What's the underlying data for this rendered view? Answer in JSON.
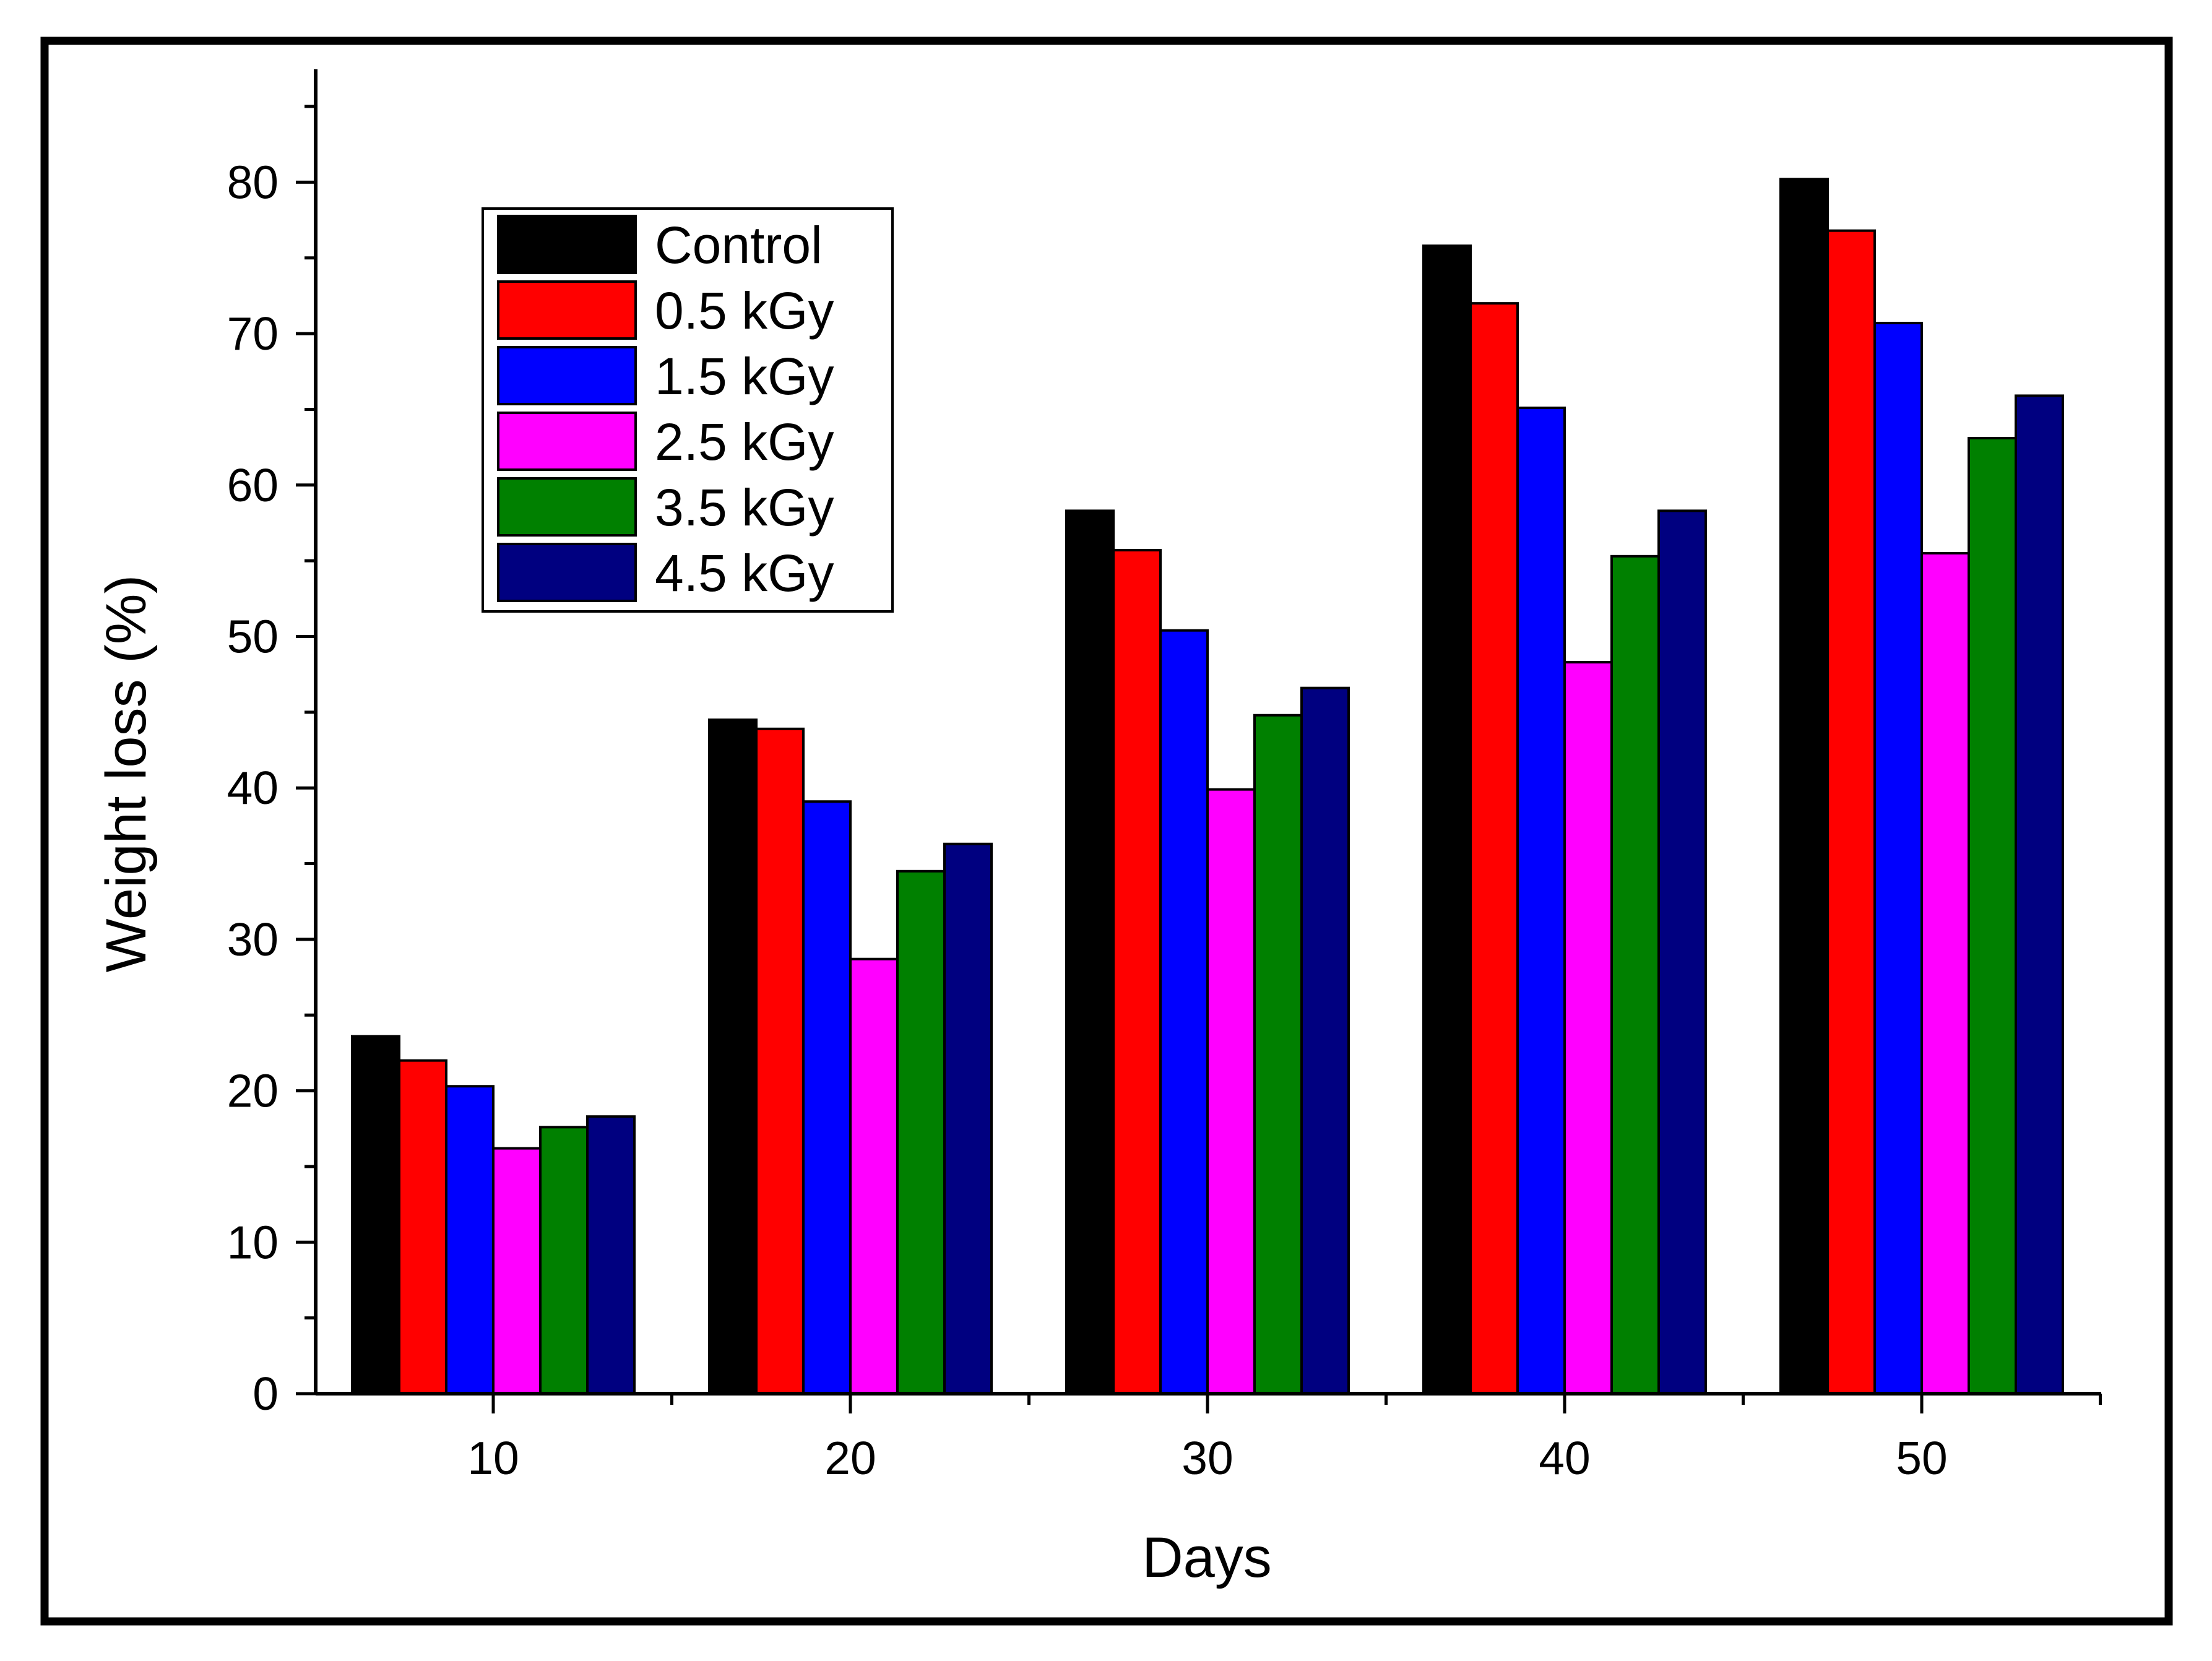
{
  "chart_data": {
    "type": "bar",
    "title": "",
    "xlabel": "Days",
    "ylabel": "Weight loss (%)",
    "categories": [
      "10",
      "20",
      "30",
      "40",
      "50"
    ],
    "ylim": [
      0,
      85
    ],
    "yticks": [
      "0",
      "10",
      "20",
      "30",
      "40",
      "50",
      "60",
      "70",
      "80"
    ],
    "grid": false,
    "legend_position": "top-left",
    "series": [
      {
        "name": "Control",
        "color": "#000000",
        "values": [
          23.6,
          44.5,
          58.3,
          75.8,
          80.2
        ]
      },
      {
        "name": "0.5 kGy",
        "color": "#ff0000",
        "values": [
          22.0,
          43.9,
          55.7,
          72.0,
          76.8
        ]
      },
      {
        "name": "1.5 kGy",
        "color": "#0000ff",
        "values": [
          20.3,
          39.1,
          50.4,
          65.1,
          70.7
        ]
      },
      {
        "name": "2.5 kGy",
        "color": "#ff00ff",
        "values": [
          16.2,
          28.7,
          39.9,
          48.3,
          55.5
        ]
      },
      {
        "name": "3.5 kGy",
        "color": "#008000",
        "values": [
          17.6,
          34.5,
          44.8,
          55.3,
          63.1
        ]
      },
      {
        "name": "4.5 kGy",
        "color": "#000080",
        "values": [
          18.3,
          36.3,
          46.6,
          58.3,
          65.9
        ]
      }
    ]
  }
}
